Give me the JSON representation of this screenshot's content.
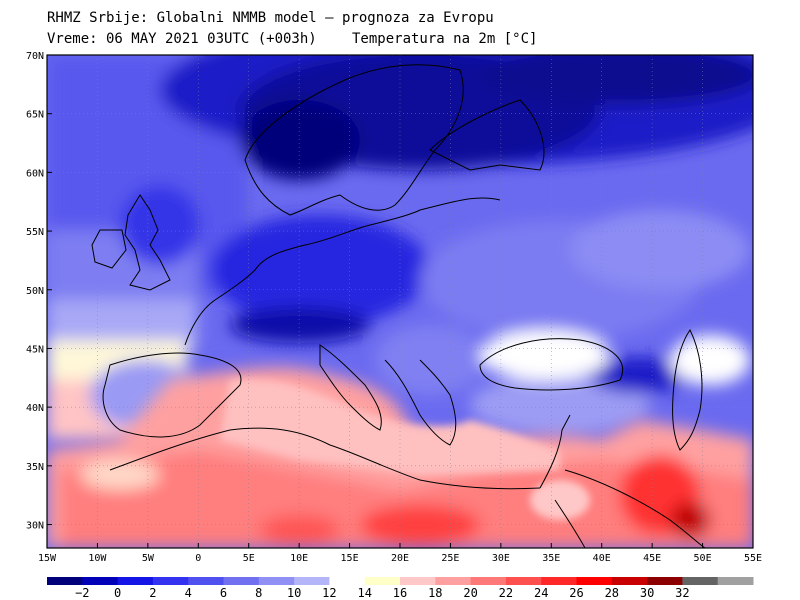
{
  "header": {
    "line1": "RHMZ Srbije: Globalni NMMB model — prognoza za Evropu",
    "line2_time": "Vreme: 06 MAY 2021 03UTC (+003h)",
    "line2_param": "Temperatura na 2m [°C]"
  },
  "map": {
    "lon_range": [
      -15,
      55
    ],
    "lat_range": [
      28,
      70
    ],
    "lat_labels": [
      "70N",
      "65N",
      "60N",
      "55N",
      "50N",
      "45N",
      "40N",
      "35N",
      "30N"
    ],
    "lat_values": [
      70,
      65,
      60,
      55,
      50,
      45,
      40,
      35,
      30
    ],
    "lon_labels": [
      "15W",
      "10W",
      "5W",
      "0",
      "5E",
      "10E",
      "15E",
      "20E",
      "25E",
      "30E",
      "35E",
      "40E",
      "45E",
      "50E",
      "55E"
    ],
    "lon_values": [
      -15,
      -10,
      -5,
      0,
      5,
      10,
      15,
      20,
      25,
      30,
      35,
      40,
      45,
      50,
      55
    ]
  },
  "colorbar": {
    "labels": [
      "−2",
      "0",
      "2",
      "4",
      "6",
      "8",
      "10",
      "12",
      "14",
      "16",
      "18",
      "20",
      "22",
      "24",
      "26",
      "28",
      "30",
      "32"
    ],
    "colors": [
      "#00007a",
      "#0000b8",
      "#1414e6",
      "#3232f0",
      "#5050f0",
      "#7070f0",
      "#9090f4",
      "#b4b4f8",
      "#ffffff",
      "#ffffc8",
      "#ffc8c8",
      "#ffa0a0",
      "#ff7878",
      "#ff5050",
      "#ff2828",
      "#ff0000",
      "#c80000",
      "#8c0000",
      "#646464",
      "#a0a0a0"
    ]
  }
}
